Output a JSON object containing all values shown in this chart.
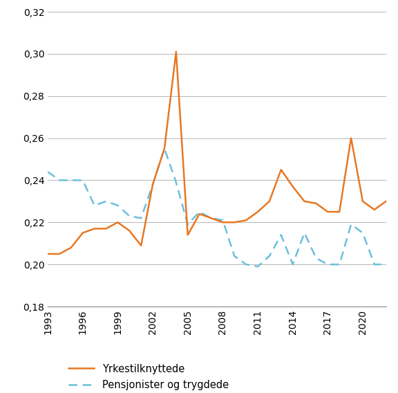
{
  "years": [
    1993,
    1994,
    1995,
    1996,
    1997,
    1998,
    1999,
    2000,
    2001,
    2002,
    2003,
    2004,
    2005,
    2006,
    2007,
    2008,
    2009,
    2010,
    2011,
    2012,
    2013,
    2014,
    2015,
    2016,
    2017,
    2018,
    2019,
    2020,
    2021,
    2022
  ],
  "yrkestilknyttede": [
    0.205,
    0.205,
    0.208,
    0.215,
    0.217,
    0.217,
    0.22,
    0.216,
    0.209,
    0.238,
    0.255,
    0.301,
    0.214,
    0.224,
    0.222,
    0.22,
    0.22,
    0.221,
    0.225,
    0.23,
    0.245,
    0.237,
    0.23,
    0.229,
    0.225,
    0.225,
    0.26,
    0.23,
    0.226,
    0.23
  ],
  "pensjonister": [
    0.244,
    0.24,
    0.24,
    0.24,
    0.228,
    0.23,
    0.228,
    0.223,
    0.222,
    0.238,
    0.255,
    0.239,
    0.219,
    0.225,
    0.222,
    0.221,
    0.204,
    0.2,
    0.199,
    0.204,
    0.214,
    0.2,
    0.215,
    0.203,
    0.2,
    0.2,
    0.219,
    0.215,
    0.2,
    0.2
  ],
  "line1_color": "#E87722",
  "line2_color": "#6BBFDD",
  "line1_label": "Yrkestilknyttede",
  "line2_label": "Pensjonister og trygdede",
  "ylim": [
    0.18,
    0.32
  ],
  "yticks": [
    0.18,
    0.2,
    0.22,
    0.24,
    0.26,
    0.28,
    0.3,
    0.32
  ],
  "xtick_years": [
    1993,
    1996,
    1999,
    2002,
    2005,
    2008,
    2011,
    2014,
    2017,
    2020
  ],
  "background_color": "#ffffff",
  "grid_color": "#aaaaaa",
  "tick_label_fontsize": 10,
  "legend_fontsize": 10.5
}
